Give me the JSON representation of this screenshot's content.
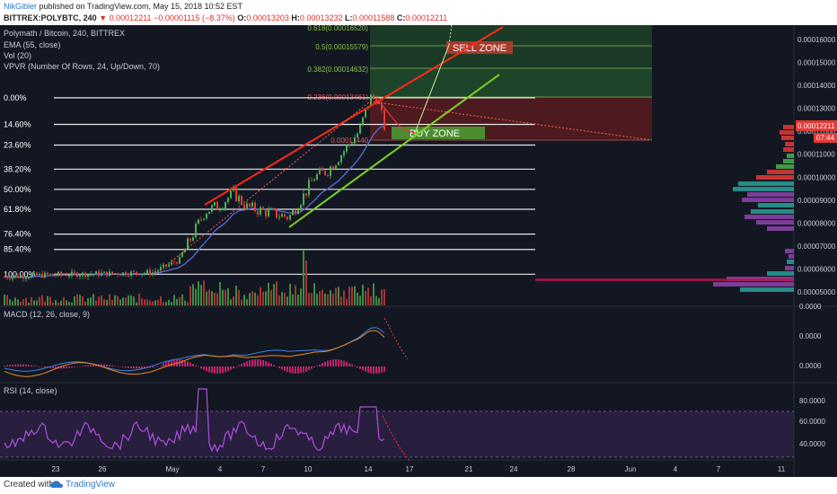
{
  "header": {
    "author": "NikGibler",
    "published_text": "published on TradingView.com, May 15, 2018 10:52 EST",
    "symbol": "BITTREX:POLYBTC, 240",
    "arrow": "▼",
    "last": "0.00012211",
    "change": "−0.00001115 (−8.37%)",
    "o_label": "O:",
    "o_value": "0.00013203",
    "h_label": "H:",
    "h_value": "0.00013232",
    "l_label": "L:",
    "l_value": "0.00011588",
    "c_label": "C:",
    "c_value": "0.00012211"
  },
  "legend": {
    "title": "Polymath / Bitcoin, 240, BITTREX",
    "ema": "EMA (55, close)",
    "vol": "Vol (20)",
    "vpvr": "VPVR (Number Of Rows, 24, Up/Down, 70)",
    "macd": "MACD (12, 26, close, 9)",
    "rsi": "RSI (14, close)"
  },
  "footer": {
    "created_with": "Created with",
    "brand": "TradingView"
  },
  "colors": {
    "background": "#121722",
    "candle_up": "#4caf50",
    "candle_down": "#e53935",
    "ema": "#5a6ed8",
    "trend_red": "#ff2a1a",
    "trend_green": "#7ed321",
    "sell_zone": "#c0392b",
    "buy_zone": "#4ca832",
    "rsi": "#b04ee0",
    "macd_line": "#3c82e6",
    "signal_line": "#f08a24",
    "macd_hist": "#c0236b"
  },
  "chart_data": {
    "type": "candlestick",
    "symbol": "POLYBTC",
    "exchange": "BITTREX",
    "interval": "240",
    "price_axis": {
      "ticks": [
        "0.00016000",
        "0.00015000",
        "0.00014000",
        "0.00013000",
        "0.00012000",
        "0.00011000",
        "0.00010000",
        "0.00009000",
        "0.00008000",
        "0.00007000",
        "0.00006000",
        "0.00005000"
      ],
      "current_price": "0.00012211",
      "countdown": "07:44"
    },
    "time_axis": {
      "ticks": [
        "23",
        "26",
        "May",
        "4",
        "7",
        "10",
        "14",
        "17",
        "21",
        "24",
        "28",
        "Jun",
        "4",
        "7",
        "11"
      ]
    },
    "fib_levels": [
      {
        "label": "0.00%",
        "price": 0.00013461
      },
      {
        "label": "14.60%",
        "price": 0.000123
      },
      {
        "label": "23.60%",
        "price": 0.000114
      },
      {
        "label": "38.20%",
        "price": 0.0001035
      },
      {
        "label": "50.00%",
        "price": 9.47e-05
      },
      {
        "label": "61.80%",
        "price": 8.6e-05
      },
      {
        "label": "76.40%",
        "price": 7.52e-05
      },
      {
        "label": "85.40%",
        "price": 6.85e-05
      },
      {
        "label": "100.00%",
        "price": 5.77e-05
      }
    ],
    "fib_extension": [
      {
        "label": "0.618(0.00016520)"
      },
      {
        "label": "0.5(0.00015579)"
      },
      {
        "label": "0.382(0.00014632)"
      },
      {
        "label": "0.236(0.00013461)"
      },
      {
        "label": "0.00011440"
      }
    ],
    "annotations": [
      "SELL ZONE",
      "BUY ZONE"
    ],
    "macd_axis": [
      "0.0000",
      "0.0000",
      "0.0000"
    ],
    "rsi_axis": [
      "80.0000",
      "60.0000",
      "40.0000"
    ]
  }
}
